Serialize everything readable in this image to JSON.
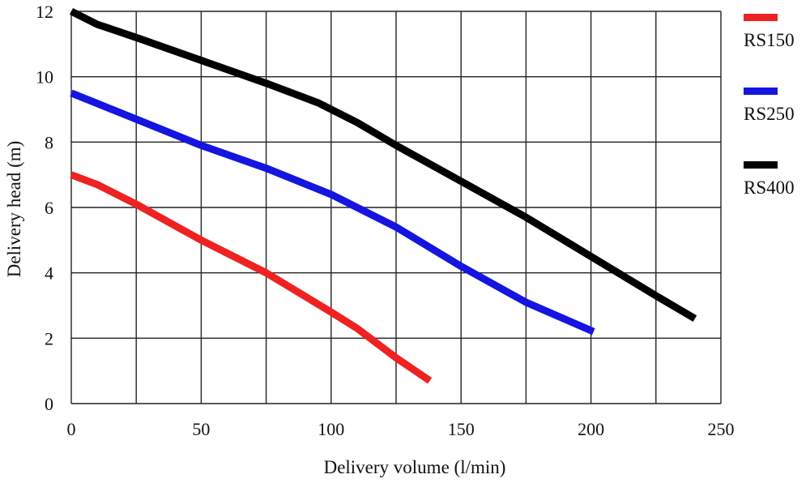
{
  "chart_data": {
    "type": "line",
    "title": "",
    "xlabel": "Delivery volume (l/min)",
    "ylabel": "Delivery head (m)",
    "xlim": [
      0,
      250
    ],
    "ylim": [
      0,
      12
    ],
    "x_ticks": [
      "0",
      "50",
      "100",
      "150",
      "200",
      "250"
    ],
    "y_ticks": [
      "0",
      "2",
      "4",
      "6",
      "8",
      "10",
      "12"
    ],
    "grid": true,
    "legend": "right",
    "series": [
      {
        "name": "RS150",
        "color": "#ee2222",
        "points": [
          [
            0,
            7.0
          ],
          [
            10,
            6.7
          ],
          [
            25,
            6.1
          ],
          [
            50,
            5.0
          ],
          [
            75,
            4.0
          ],
          [
            100,
            2.8
          ],
          [
            110,
            2.3
          ],
          [
            125,
            1.4
          ],
          [
            138,
            0.7
          ]
        ]
      },
      {
        "name": "RS250",
        "color": "#1515e0",
        "points": [
          [
            0,
            9.5
          ],
          [
            25,
            8.7
          ],
          [
            50,
            7.9
          ],
          [
            75,
            7.2
          ],
          [
            100,
            6.4
          ],
          [
            125,
            5.4
          ],
          [
            150,
            4.2
          ],
          [
            175,
            3.1
          ],
          [
            201,
            2.2
          ]
        ]
      },
      {
        "name": "RS400",
        "color": "#000000",
        "points": [
          [
            0,
            12.0
          ],
          [
            10,
            11.6
          ],
          [
            25,
            11.2
          ],
          [
            50,
            10.5
          ],
          [
            75,
            9.8
          ],
          [
            95,
            9.2
          ],
          [
            110,
            8.6
          ],
          [
            125,
            7.9
          ],
          [
            150,
            6.8
          ],
          [
            175,
            5.7
          ],
          [
            200,
            4.5
          ],
          [
            225,
            3.3
          ],
          [
            240,
            2.6
          ]
        ]
      }
    ]
  }
}
